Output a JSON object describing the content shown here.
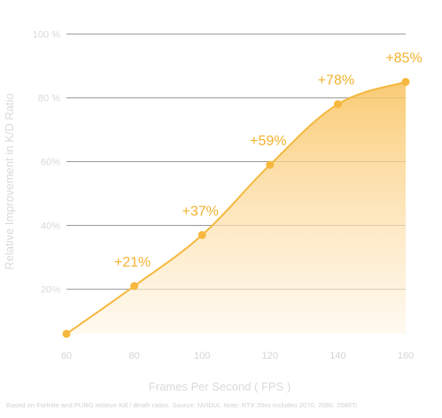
{
  "chart_data": {
    "type": "area",
    "title": "",
    "xlabel": "Frames Per Second ( FPS )",
    "ylabel": "Relative Improvement in K/D Ratio",
    "x": [
      60,
      80,
      100,
      120,
      140,
      160
    ],
    "x_ticks": [
      "60",
      "80",
      "100",
      "120",
      "140",
      "160"
    ],
    "y_ticks": [
      "20%",
      "40%",
      "60%",
      "80 %",
      "100 %"
    ],
    "y_tick_values": [
      20,
      40,
      60,
      80,
      100
    ],
    "series": [
      {
        "values": [
          6,
          21,
          37,
          59,
          78,
          85
        ],
        "data_labels": [
          "",
          "+21%",
          "+37%",
          "+59%",
          "+78%",
          "+85%"
        ]
      }
    ],
    "xlim": [
      60,
      160
    ],
    "ylim": [
      6,
      104
    ],
    "grid": "horizontal",
    "legend": "none",
    "footnote": "Based on Fortnite and PUBG relative Kill / death ratios. Source: NVIDIA. Note: RTX 20xx includes 2070, 2080, 2080Ti",
    "colors": {
      "accent": "#f6b83e",
      "label": "#f3b22e",
      "fill_top": "#f9c25c",
      "fill_bottom": "#fff6e6",
      "grid": "#999999",
      "text": "#d9d9d9"
    }
  }
}
